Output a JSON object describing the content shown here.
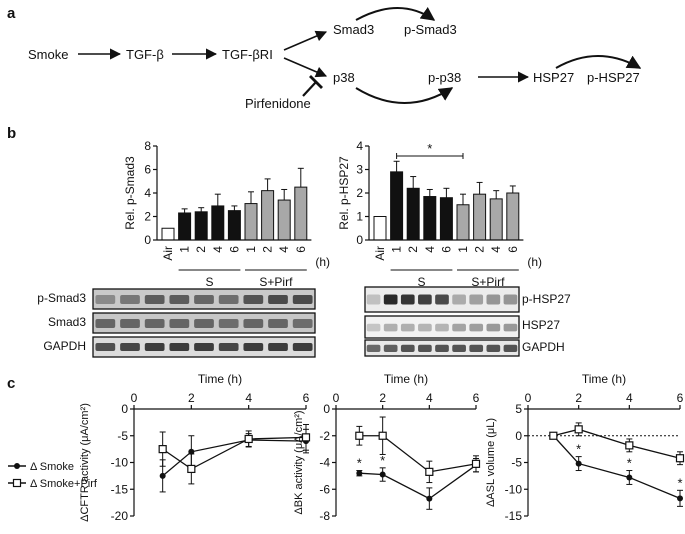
{
  "panel_a": {
    "label": "a",
    "nodes": {
      "smoke": "Smoke",
      "tgfb": "TGF-β",
      "tgfbri": "TGF-βRI",
      "smad3": "Smad3",
      "psmad3": "p-Smad3",
      "p38": "p38",
      "pp38": "p-p38",
      "hsp27": "HSP27",
      "phsp27": "p-HSP27",
      "pirfenidone": "Pirfenidone"
    }
  },
  "panel_b": {
    "label": "b",
    "x_unit": "(h)",
    "group_s": "S",
    "group_spirf": "S+Pirf",
    "air_label": "Air",
    "blot_left_labels": [
      "p-Smad3",
      "Smad3",
      "GAPDH"
    ],
    "blot_right_labels": [
      "p-HSP27",
      "HSP27",
      "GAPDH"
    ],
    "significance": "*"
  },
  "panel_c": {
    "label": "c",
    "time_label": "Time (h)",
    "legend": [
      "Δ Smoke",
      "Δ Smoke+Pirf"
    ],
    "significance": "*"
  },
  "chart_data": [
    {
      "id": "psmad3",
      "type": "bar",
      "ylabel": "Rel. p-Smad3",
      "ylim": [
        0,
        8
      ],
      "yticks": [
        0,
        2,
        4,
        6,
        8
      ],
      "categories": [
        "Air",
        "1",
        "2",
        "4",
        "6",
        "1",
        "2",
        "4",
        "6"
      ],
      "groups": [
        "air",
        "S",
        "S",
        "S",
        "S",
        "S+Pirf",
        "S+Pirf",
        "S+Pirf",
        "S+Pirf"
      ],
      "values": [
        1.0,
        2.3,
        2.4,
        2.9,
        2.5,
        3.1,
        4.2,
        3.4,
        4.5
      ],
      "errors": [
        0,
        0.35,
        0.35,
        1.0,
        0.4,
        1.0,
        1.0,
        0.9,
        1.6
      ]
    },
    {
      "id": "phsp27",
      "type": "bar",
      "ylabel": "Rel. p-HSP27",
      "ylim": [
        0,
        4
      ],
      "yticks": [
        0,
        1,
        2,
        3,
        4
      ],
      "categories": [
        "Air",
        "1",
        "2",
        "4",
        "6",
        "1",
        "2",
        "4",
        "6"
      ],
      "groups": [
        "air",
        "S",
        "S",
        "S",
        "S",
        "S+Pirf",
        "S+Pirf",
        "S+Pirf",
        "S+Pirf"
      ],
      "values": [
        1.0,
        2.9,
        2.2,
        1.85,
        1.8,
        1.5,
        1.95,
        1.75,
        2.0
      ],
      "errors": [
        0,
        0.45,
        0.5,
        0.3,
        0.4,
        0.45,
        0.5,
        0.35,
        0.3
      ],
      "bracket": {
        "from": 1,
        "to": 5,
        "label": "*"
      }
    },
    {
      "id": "cftr",
      "type": "line",
      "xlabel": "Time (h)",
      "ylabel": "ΔCFTR activity (μA/cm²)",
      "xlim": [
        0,
        6
      ],
      "xticks": [
        0,
        2,
        4,
        6
      ],
      "ylim": [
        -20,
        0
      ],
      "yticks": [
        0,
        -5,
        -10,
        -15,
        -20
      ],
      "series": [
        {
          "name": "Δ Smoke",
          "marker": "filled",
          "x": [
            1,
            2,
            4,
            6
          ],
          "y": [
            -12.5,
            -8,
            -5.8,
            -6
          ],
          "err": [
            3,
            3,
            1.2,
            2.2
          ]
        },
        {
          "name": "Δ Smoke+Pirf",
          "marker": "open",
          "x": [
            1,
            2,
            4,
            6
          ],
          "y": [
            -7.5,
            -11.2,
            -5.6,
            -5.3
          ],
          "err": [
            3.2,
            2.8,
            1.5,
            2.4
          ]
        }
      ]
    },
    {
      "id": "bk",
      "type": "line",
      "xlabel": "Time (h)",
      "ylabel": "ΔBK activity (μA/cm²)",
      "xlim": [
        0,
        6
      ],
      "xticks": [
        0,
        2,
        4,
        6
      ],
      "ylim": [
        -8,
        0
      ],
      "yticks": [
        0,
        -2,
        -4,
        -6,
        -8
      ],
      "series": [
        {
          "name": "Δ Smoke",
          "marker": "filled",
          "x": [
            1,
            2,
            4,
            6
          ],
          "y": [
            -4.8,
            -4.9,
            -6.7,
            -4.2
          ],
          "err": [
            0.2,
            0.5,
            0.8,
            0.5
          ],
          "stars": [
            1,
            2
          ]
        },
        {
          "name": "Δ Smoke+Pirf",
          "marker": "open",
          "x": [
            1,
            2,
            4,
            6
          ],
          "y": [
            -2.0,
            -2.0,
            -4.7,
            -4.1
          ],
          "err": [
            0.7,
            1.4,
            0.8,
            0.6
          ]
        }
      ]
    },
    {
      "id": "asl",
      "type": "line",
      "xlabel": "Time (h)",
      "ylabel": "ΔASL volume (μL)",
      "xlim": [
        0,
        6
      ],
      "xticks": [
        0,
        2,
        4,
        6
      ],
      "ylim": [
        -15,
        5
      ],
      "yticks": [
        5,
        0,
        -5,
        -10,
        -15
      ],
      "zero_line": "dotted",
      "series": [
        {
          "name": "Δ Smoke",
          "marker": "filled",
          "x": [
            1,
            2,
            4,
            6
          ],
          "y": [
            0,
            -5.2,
            -7.8,
            -11.7
          ],
          "err": [
            0,
            1.3,
            1.3,
            1.5
          ],
          "stars": [
            2,
            4,
            6
          ]
        },
        {
          "name": "Δ Smoke+Pirf",
          "marker": "open",
          "x": [
            1,
            2,
            4,
            6
          ],
          "y": [
            0,
            1.2,
            -1.8,
            -4.2
          ],
          "err": [
            0,
            1.2,
            1.2,
            1.2
          ]
        }
      ]
    }
  ]
}
